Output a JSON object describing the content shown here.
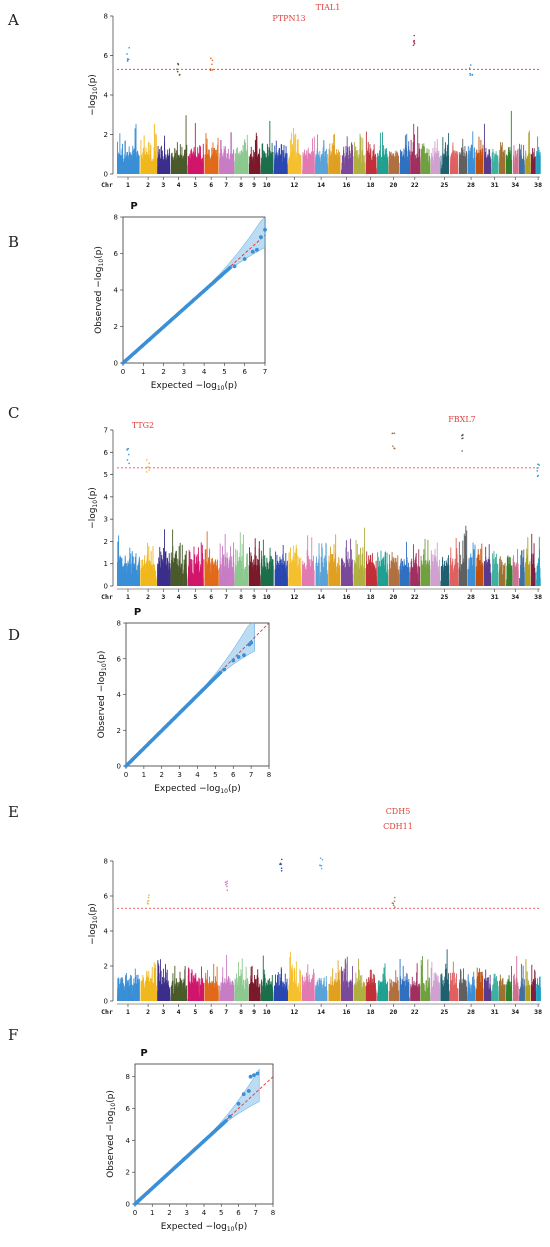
{
  "colors": {
    "threshold": "#e8323a",
    "gene_label": "#e0403a",
    "qq_points": "#3a8fd6",
    "qq_band": "#8ec5ea",
    "chromosomes": [
      "#3a8fd6",
      "#f0b81e",
      "#3b2f8a",
      "#4a5a2a",
      "#d0166b",
      "#e06a1a",
      "#c77dc4",
      "#8cc98f",
      "#7a1a2a",
      "#1c6f4a",
      "#2b47b0",
      "#f5c030",
      "#e07ab0",
      "#5aa3d8",
      "#e0a020",
      "#7a4a9a",
      "#b0b040",
      "#c0303a",
      "#20a090",
      "#b07040",
      "#3070c0",
      "#a03060",
      "#70a040",
      "#d0a0d0",
      "#206070",
      "#e06060",
      "#606060",
      "#3a8fd6",
      "#c05010",
      "#5a3a8a",
      "#40b0a0",
      "#a07030",
      "#308030",
      "#d07090",
      "#4070a0",
      "#b0a020",
      "#802040",
      "#20a0c0"
    ]
  },
  "chart_data": [
    {
      "panel": "A",
      "type": "scatter",
      "kind": "manhattan",
      "ylabel": "−log10(p)",
      "xlabel_prefix": "Chr",
      "ylim": [
        0,
        8
      ],
      "yticks": [
        0,
        2,
        4,
        6,
        8
      ],
      "chromosome_labels": [
        "1",
        "2",
        "3",
        "4",
        "5",
        "6",
        "7",
        "8",
        "9",
        "10",
        "12",
        "14",
        "16",
        "18",
        "20",
        "22",
        "25",
        "28",
        "31",
        "34",
        "38"
      ],
      "threshold": 5.3,
      "annotations": [
        "PTPN13",
        "TIAL1"
      ],
      "peaks": [
        {
          "chr": 1,
          "value": 6.4
        },
        {
          "chr": 4,
          "value": 5.8
        },
        {
          "chr": 6,
          "value": 6.0
        },
        {
          "chr": 22,
          "value": 7.2
        },
        {
          "chr": 28,
          "value": 5.8
        }
      ]
    },
    {
      "panel": "B",
      "type": "scatter",
      "kind": "qq",
      "title": "P",
      "xlabel": "Expected −log10(p)",
      "ylabel": "Observed −log10(p)",
      "xlim": [
        0,
        7
      ],
      "ylim": [
        0,
        8
      ],
      "xticks": [
        0,
        1,
        2,
        3,
        4,
        5,
        6,
        7
      ],
      "yticks": [
        0,
        2,
        4,
        6,
        8
      ],
      "tail": [
        [
          5.5,
          5.3
        ],
        [
          6.0,
          5.7
        ],
        [
          6.4,
          6.1
        ],
        [
          6.6,
          6.2
        ],
        [
          6.8,
          6.9
        ],
        [
          7.0,
          7.3
        ]
      ]
    },
    {
      "panel": "C",
      "type": "scatter",
      "kind": "manhattan",
      "ylabel": "−log10(p)",
      "xlabel_prefix": "Chr",
      "ylim": [
        0,
        7
      ],
      "yticks": [
        0,
        1,
        2,
        3,
        4,
        5,
        6,
        7
      ],
      "chromosome_labels": [
        "1",
        "2",
        "3",
        "4",
        "5",
        "6",
        "7",
        "8",
        "9",
        "10",
        "12",
        "14",
        "16",
        "18",
        "20",
        "22",
        "25",
        "28",
        "31",
        "34",
        "38"
      ],
      "threshold": 5.3,
      "annotations": [
        "TTG2",
        "FBXL7"
      ],
      "peaks": [
        {
          "chr": 1,
          "value": 6.2
        },
        {
          "chr": 2,
          "value": 5.9
        },
        {
          "chr": 20,
          "value": 6.9
        },
        {
          "chr": 27,
          "value": 6.8
        },
        {
          "chr": 38,
          "value": 5.6
        }
      ]
    },
    {
      "panel": "D",
      "type": "scatter",
      "kind": "qq",
      "title": "P",
      "xlabel": "Expected −log10(p)",
      "ylabel": "Observed −log10(p)",
      "xlim": [
        0,
        8
      ],
      "ylim": [
        0,
        8
      ],
      "xticks": [
        0,
        1,
        2,
        3,
        4,
        5,
        6,
        7,
        8
      ],
      "yticks": [
        0,
        2,
        4,
        6,
        8
      ],
      "tail": [
        [
          5.5,
          5.4
        ],
        [
          6.0,
          5.9
        ],
        [
          6.3,
          6.1
        ],
        [
          6.6,
          6.2
        ],
        [
          6.9,
          6.8
        ],
        [
          7.0,
          6.9
        ]
      ]
    },
    {
      "panel": "E",
      "type": "scatter",
      "kind": "manhattan",
      "ylabel": "−log10(p)",
      "xlabel_prefix": "Chr",
      "ylim": [
        0,
        8.8
      ],
      "yticks": [
        0,
        2,
        4,
        6,
        8
      ],
      "chromosome_labels": [
        "1",
        "2",
        "3",
        "4",
        "5",
        "6",
        "7",
        "8",
        "9",
        "10",
        "12",
        "14",
        "16",
        "18",
        "20",
        "22",
        "25",
        "28",
        "31",
        "34",
        "38"
      ],
      "threshold": 5.3,
      "annotations": [
        "CDH5",
        "CDH11"
      ],
      "peaks": [
        {
          "chr": 2,
          "value": 6.3
        },
        {
          "chr": 11,
          "value": 8.1
        },
        {
          "chr": 14,
          "value": 8.3
        },
        {
          "chr": 20,
          "value": 6.0
        },
        {
          "chr": 7,
          "value": 6.9
        }
      ]
    },
    {
      "panel": "F",
      "type": "scatter",
      "kind": "qq",
      "title": "P",
      "xlabel": "Expected −log10(p)",
      "ylabel": "Observed −log10(p)",
      "xlim": [
        0,
        8
      ],
      "ylim": [
        0,
        8.8
      ],
      "xticks": [
        0,
        1,
        2,
        3,
        4,
        5,
        6,
        7,
        8
      ],
      "yticks": [
        0,
        2,
        4,
        6,
        8
      ],
      "tail": [
        [
          5.5,
          5.5
        ],
        [
          6.0,
          6.3
        ],
        [
          6.3,
          6.9
        ],
        [
          6.6,
          7.1
        ],
        [
          6.7,
          8.0
        ],
        [
          6.9,
          8.1
        ],
        [
          7.1,
          8.2
        ]
      ]
    }
  ]
}
